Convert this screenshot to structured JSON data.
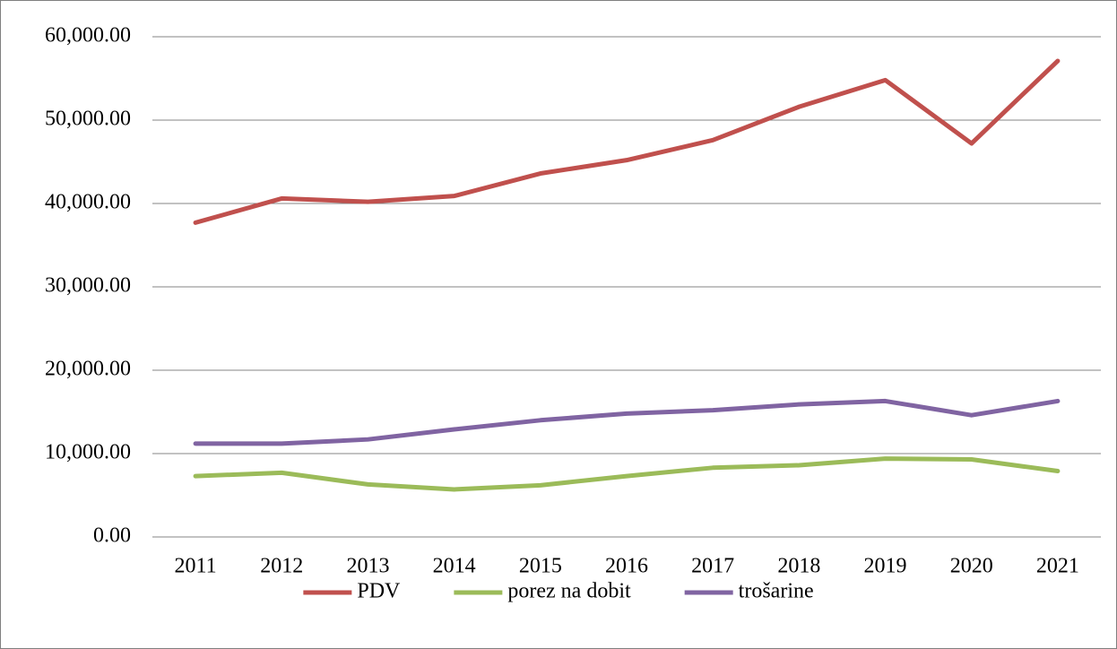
{
  "chart_data": {
    "type": "line",
    "categories": [
      "2011",
      "2012",
      "2013",
      "2014",
      "2015",
      "2016",
      "2017",
      "2018",
      "2019",
      "2020",
      "2021"
    ],
    "series": [
      {
        "name": "PDV",
        "color": "#c0504d",
        "values": [
          37700,
          40600,
          40200,
          40900,
          43600,
          45200,
          47600,
          51600,
          54800,
          47200,
          57100
        ]
      },
      {
        "name": "porez na dobit",
        "color": "#9bbb59",
        "values": [
          7300,
          7700,
          6300,
          5700,
          6200,
          7300,
          8300,
          8600,
          9400,
          9300,
          7900
        ]
      },
      {
        "name": "trošarine",
        "color": "#8064a2",
        "values": [
          11200,
          11200,
          11700,
          12900,
          14000,
          14800,
          15200,
          15900,
          16300,
          14600,
          16300
        ]
      }
    ],
    "ylim": [
      0,
      60000
    ],
    "yticks": [
      {
        "value": 0,
        "label": "0.00"
      },
      {
        "value": 10000,
        "label": "10,000.00"
      },
      {
        "value": 20000,
        "label": "20,000.00"
      },
      {
        "value": 30000,
        "label": "30,000.00"
      },
      {
        "value": 40000,
        "label": "40,000.00"
      },
      {
        "value": 50000,
        "label": "50,000.00"
      },
      {
        "value": 60000,
        "label": "60,000.00"
      }
    ],
    "grid": true,
    "legend": "bottom"
  }
}
